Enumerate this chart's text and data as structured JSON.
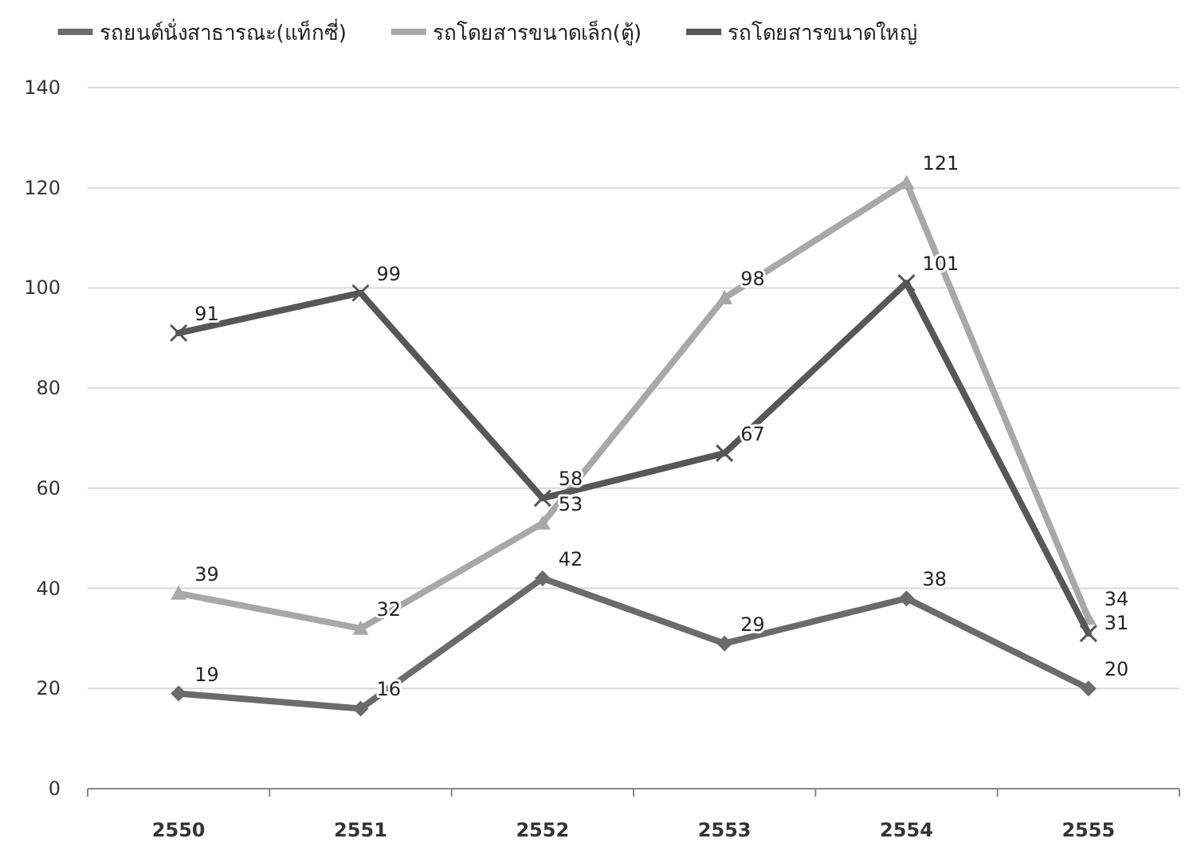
{
  "chart_data": {
    "type": "line",
    "categories": [
      "2550",
      "2551",
      "2552",
      "2553",
      "2554",
      "2555"
    ],
    "series": [
      {
        "name": "รถยนต์นั่งสาธารณะ(แท็กซี่)",
        "color": "#6b6b6b",
        "marker": "diamond",
        "values": [
          19,
          16,
          42,
          29,
          38,
          20
        ]
      },
      {
        "name": "รถโดยสารขนาดเล็ก(ตู้)",
        "color": "#a8a8a8",
        "marker": "triangle",
        "values": [
          39,
          32,
          53,
          98,
          121,
          34
        ]
      },
      {
        "name": "รถโดยสารขนาดใหญ่",
        "color": "#575757",
        "marker": "cross",
        "values": [
          91,
          99,
          58,
          67,
          101,
          31
        ]
      }
    ],
    "ylim": [
      0,
      140
    ],
    "yticks": [
      0,
      20,
      40,
      60,
      80,
      100,
      120,
      140
    ],
    "grid": "y",
    "legend": "top",
    "data_labels": true
  }
}
